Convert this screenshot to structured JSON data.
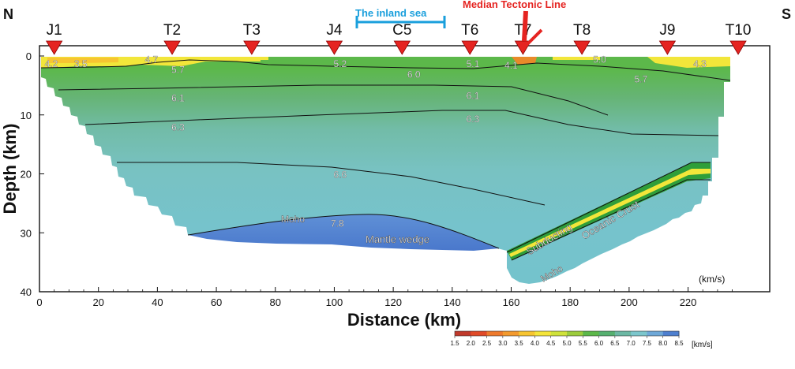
{
  "direction": {
    "north": "N",
    "south": "S"
  },
  "annotations": {
    "inland_sea": "The inland sea",
    "median_tectonic_line": "Median Tectonic Line",
    "units": "(km/s)",
    "moho_upper": "Moho",
    "moho_lower": "Moho",
    "mantle_wedge": "Mantle wedge",
    "subducting": "Subducting",
    "oceanic_crust": "Oceanic Crust"
  },
  "stations": [
    {
      "name": "J1",
      "km": 5
    },
    {
      "name": "T2",
      "km": 45
    },
    {
      "name": "T3",
      "km": 72
    },
    {
      "name": "J4",
      "km": 100
    },
    {
      "name": "C5",
      "km": 123
    },
    {
      "name": "T6",
      "km": 146
    },
    {
      "name": "T7",
      "km": 164
    },
    {
      "name": "T8",
      "km": 184
    },
    {
      "name": "J9",
      "km": 213
    },
    {
      "name": "T10",
      "km": 237
    }
  ],
  "velocity_labels": [
    {
      "text": "4.2",
      "km": 4,
      "depth": 1.2
    },
    {
      "text": "3.5",
      "km": 14,
      "depth": 1.2
    },
    {
      "text": "4.7",
      "km": 38,
      "depth": 0.5
    },
    {
      "text": "5.7",
      "km": 47,
      "depth": 2.2
    },
    {
      "text": "5.2",
      "km": 102,
      "depth": 1.2
    },
    {
      "text": "6.0",
      "km": 127,
      "depth": 3.0
    },
    {
      "text": "5.1",
      "km": 147,
      "depth": 1.2
    },
    {
      "text": "4.1",
      "km": 160,
      "depth": 1.5
    },
    {
      "text": "5.0",
      "km": 190,
      "depth": 0.5
    },
    {
      "text": "4.3",
      "km": 224,
      "depth": 1.2
    },
    {
      "text": "5.7",
      "km": 204,
      "depth": 3.8
    },
    {
      "text": "6.1",
      "km": 47,
      "depth": 7.0
    },
    {
      "text": "6.1",
      "km": 147,
      "depth": 6.6
    },
    {
      "text": "6.3",
      "km": 47,
      "depth": 12.0
    },
    {
      "text": "6.3",
      "km": 147,
      "depth": 10.6
    },
    {
      "text": "6.6",
      "km": 102,
      "depth": 20.0
    },
    {
      "text": "7.8",
      "km": 101,
      "depth": 28.3
    }
  ],
  "axes": {
    "xlabel": "Distance (km)",
    "ylabel": "Depth (km)",
    "x_ticks": [
      "0",
      "20",
      "40",
      "60",
      "80",
      "100",
      "120",
      "140",
      "160",
      "180",
      "200",
      "220"
    ],
    "y_ticks": [
      "0",
      "10",
      "20",
      "30",
      "40"
    ],
    "x_range": [
      0,
      240
    ],
    "y_range": [
      0,
      40
    ]
  },
  "colorbar": {
    "ticks": [
      "1.5",
      "2.0",
      "2.5",
      "3.0",
      "3.5",
      "4.0",
      "4.5",
      "5.0",
      "5.5",
      "6.0",
      "6.5",
      "7.0",
      "7.5",
      "8.0",
      "8.5"
    ],
    "colors": [
      "#c0392b",
      "#e04a28",
      "#ee7a2c",
      "#f39a2e",
      "#f7c531",
      "#f5e53a",
      "#cfe23a",
      "#9ccc3c",
      "#5cb84a",
      "#56b070",
      "#6cb8a4",
      "#7cc6cc",
      "#6ea8d8",
      "#4e7fcf",
      "#4a47a8"
    ],
    "unit": "[km/s]"
  },
  "colors": {
    "station_marker": "#e52421",
    "inland_sea": "#1a9fdc",
    "mtl": "#e52421"
  }
}
